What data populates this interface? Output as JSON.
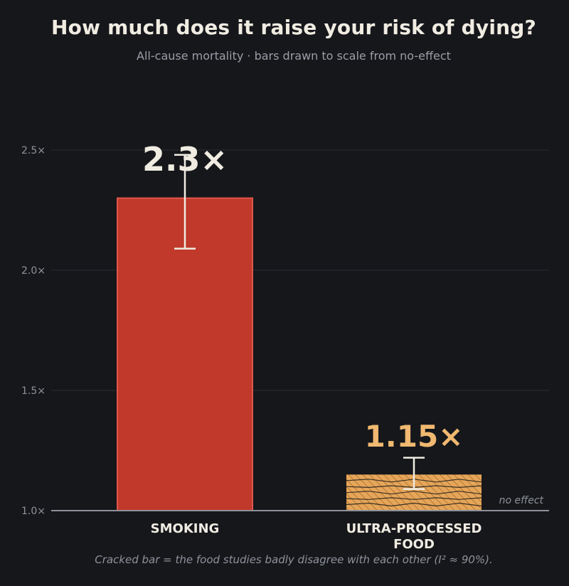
{
  "chart_data": {
    "type": "bar",
    "title": "How much does it raise your risk of dying?",
    "subtitle": "All-cause mortality  ·  bars drawn to scale from no-effect",
    "footnote": "Cracked bar = the food studies badly disagree with each other (I² ≈ 90%).",
    "baseline_label": "no effect",
    "ylim": [
      1.0,
      2.78
    ],
    "yticks": [
      1.0,
      1.5,
      2.0,
      2.5
    ],
    "ytick_labels": [
      "1.0×",
      "1.5×",
      "2.0×",
      "2.5×"
    ],
    "grid": true,
    "categories": [
      "SMOKING",
      "ULTRA-PROCESSED FOOD"
    ],
    "category_label_lines": [
      [
        "SMOKING"
      ],
      [
        "ULTRA-PROCESSED",
        "FOOD"
      ]
    ],
    "values": [
      2.3,
      1.15
    ],
    "value_labels": [
      "2.3×",
      "1.15×"
    ],
    "error_bars": [
      {
        "low": 2.09,
        "high": 2.48
      },
      {
        "low": 1.09,
        "high": 1.22
      }
    ],
    "bar_styles": [
      "solid",
      "cracked"
    ],
    "colors": {
      "smoking_bar": "#c0392b",
      "smoking_edge": "#e0574a",
      "food_bar": "#e6a65a",
      "food_hatch": "#b67a35",
      "crack": "#1a1a1a",
      "smoking_label": "#f0ece2",
      "food_label": "#f0b870",
      "grid": "#2b2d33",
      "baseline": "#8e929a",
      "tick_text": "#8e929a",
      "category_text": "#f0ece2",
      "error_bar": "#f0ece2"
    }
  }
}
